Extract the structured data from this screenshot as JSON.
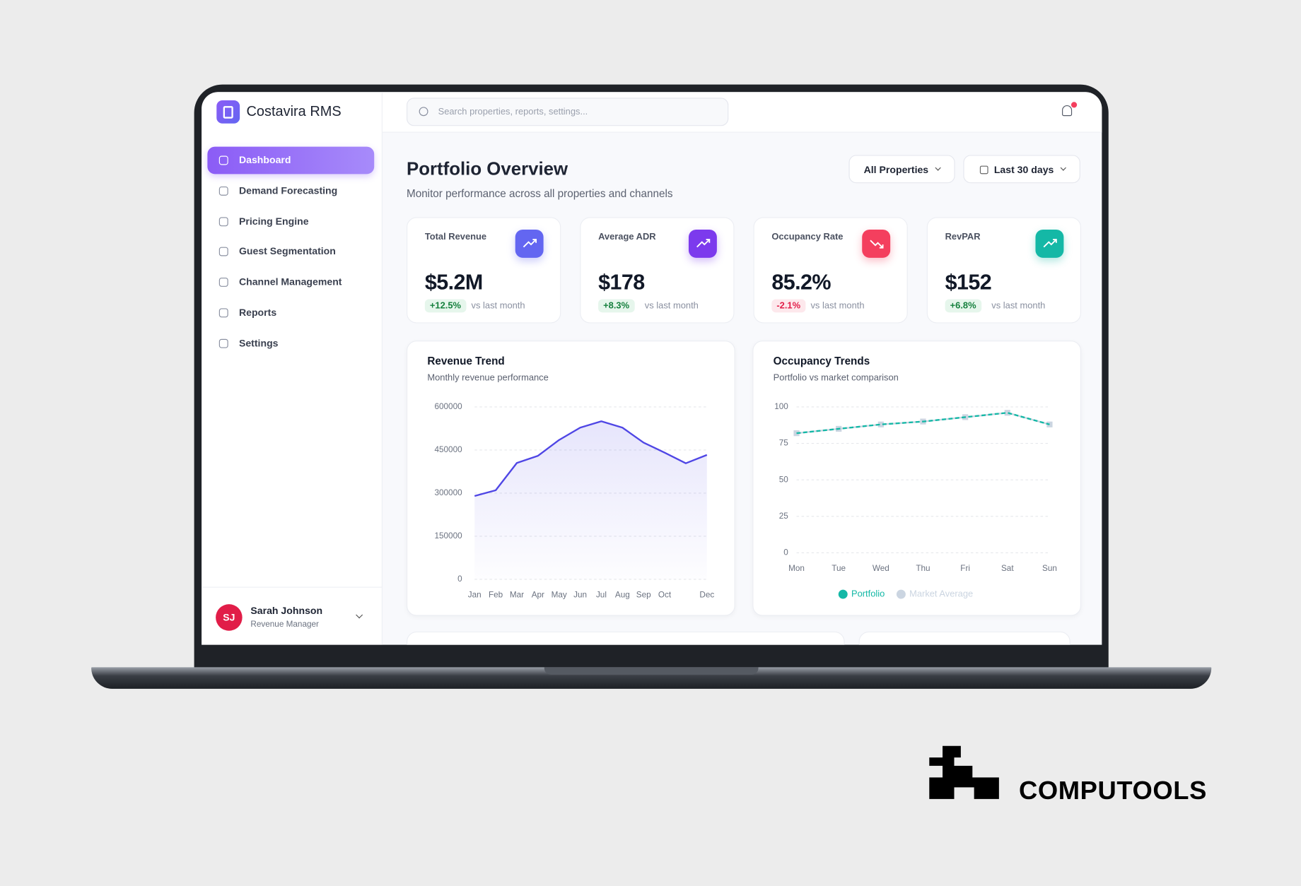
{
  "app": {
    "name": "Costavira RMS",
    "search_placeholder": "Search properties, reports, settings..."
  },
  "sidebar": {
    "nav": [
      "Dashboard",
      "Demand Forecasting",
      "Pricing Engine",
      "Guest Segmentation",
      "Channel Management",
      "Reports",
      "Settings"
    ]
  },
  "user": {
    "initials": "SJ",
    "name": "Sarah Johnson",
    "role": "Revenue Manager"
  },
  "page": {
    "title": "Portfolio Overview",
    "subtitle": "Monitor performance across all properties and channels",
    "filters": [
      "All Properties",
      "Last 30 days"
    ]
  },
  "kpis": [
    {
      "label": "Total Revenue",
      "value": "$5.2M",
      "change": "+12.5%",
      "note": "vs last month"
    },
    {
      "label": "Average ADR",
      "value": "$178",
      "change": "+8.3%",
      "note": "vs last month"
    },
    {
      "label": "Occupancy Rate",
      "value": "85.2%",
      "change": "-2.1%",
      "note": "vs last month"
    },
    {
      "label": "RevPAR",
      "value": "$152",
      "change": "+6.8%",
      "note": "vs last month"
    }
  ],
  "chart_data": [
    {
      "type": "area",
      "title": "Revenue Trend",
      "subtitle": "Monthly revenue performance",
      "categories": [
        "Jan",
        "Feb",
        "Mar",
        "Apr",
        "May",
        "Jun",
        "Jul",
        "Aug",
        "Sep",
        "Oct",
        null,
        "Dec"
      ],
      "values": [
        290000,
        310000,
        405000,
        430000,
        485000,
        528000,
        550000,
        528000,
        476000,
        441000,
        404000,
        433000
      ],
      "color": "#4f46e5",
      "ylim": [
        0,
        600000
      ],
      "yticks": [
        0,
        150000,
        300000,
        450000,
        600000
      ],
      "grid": true
    },
    {
      "type": "line",
      "title": "Occupancy Trends",
      "subtitle": "Portfolio vs market comparison",
      "categories": [
        "Mon",
        "Tue",
        "Wed",
        "Thu",
        "Fri",
        "Sat",
        "Sun"
      ],
      "series": [
        {
          "name": "Market Average",
          "color": "#cbd5e1",
          "values": [
            82,
            85,
            88,
            90,
            93,
            96,
            88
          ]
        },
        {
          "name": "Portfolio",
          "color": "#14b8a6",
          "values": [
            82,
            85,
            88,
            90,
            93,
            96,
            88
          ]
        }
      ],
      "ylim": [
        0,
        100
      ],
      "yticks": [
        0,
        25,
        50,
        75,
        100
      ],
      "grid": true,
      "legend": "bottom"
    }
  ],
  "brand": {
    "name": "COMPUTOOLS"
  }
}
